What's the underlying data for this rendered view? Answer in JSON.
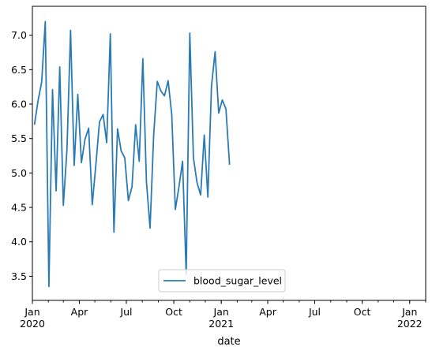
{
  "chart_data": {
    "type": "line",
    "title": "",
    "xlabel": "date",
    "ylabel": "",
    "xlim": [
      "2020-01",
      "2022-02"
    ],
    "ylim": [
      3.15,
      7.42
    ],
    "grid": false,
    "legend": "bottom-center",
    "x_ticks": [
      {
        "date": "2020-01",
        "label": "Jan",
        "year": "2020"
      },
      {
        "date": "2020-04",
        "label": "Apr",
        "year": ""
      },
      {
        "date": "2020-07",
        "label": "Jul",
        "year": ""
      },
      {
        "date": "2020-10",
        "label": "Oct",
        "year": ""
      },
      {
        "date": "2021-01",
        "label": "Jan",
        "year": "2021"
      },
      {
        "date": "2021-04",
        "label": "Apr",
        "year": ""
      },
      {
        "date": "2021-07",
        "label": "Jul",
        "year": ""
      },
      {
        "date": "2021-10",
        "label": "Oct",
        "year": ""
      },
      {
        "date": "2022-01",
        "label": "Jan",
        "year": "2022"
      }
    ],
    "y_ticks": [
      3.5,
      4.0,
      4.5,
      5.0,
      5.5,
      6.0,
      6.5,
      7.0
    ],
    "y_tick_labels": [
      "3.5",
      "4.0",
      "4.5",
      "5.0",
      "5.5",
      "6.0",
      "6.5",
      "7.0"
    ],
    "series": [
      {
        "name": "blood_sugar_level",
        "color": "#2a7bb5",
        "points": [
          [
            "2020-01-05",
            5.7
          ],
          [
            "2020-01-12",
            6.05
          ],
          [
            "2020-01-19",
            6.32
          ],
          [
            "2020-01-26",
            7.2
          ],
          [
            "2020-02-02",
            3.35
          ],
          [
            "2020-02-09",
            6.21
          ],
          [
            "2020-02-16",
            4.74
          ],
          [
            "2020-02-23",
            6.54
          ],
          [
            "2020-03-01",
            4.53
          ],
          [
            "2020-03-08",
            5.34
          ],
          [
            "2020-03-15",
            7.07
          ],
          [
            "2020-03-22",
            5.11
          ],
          [
            "2020-03-29",
            6.14
          ],
          [
            "2020-04-05",
            5.15
          ],
          [
            "2020-04-12",
            5.49
          ],
          [
            "2020-04-19",
            5.65
          ],
          [
            "2020-04-26",
            4.54
          ],
          [
            "2020-05-03",
            5.12
          ],
          [
            "2020-05-10",
            5.74
          ],
          [
            "2020-05-17",
            5.85
          ],
          [
            "2020-05-24",
            5.44
          ],
          [
            "2020-05-31",
            7.02
          ],
          [
            "2020-06-07",
            4.14
          ],
          [
            "2020-06-14",
            5.64
          ],
          [
            "2020-06-21",
            5.32
          ],
          [
            "2020-06-28",
            5.22
          ],
          [
            "2020-07-05",
            4.6
          ],
          [
            "2020-07-12",
            4.8
          ],
          [
            "2020-07-19",
            5.7
          ],
          [
            "2020-07-26",
            5.17
          ],
          [
            "2020-08-02",
            6.66
          ],
          [
            "2020-08-09",
            4.87
          ],
          [
            "2020-08-16",
            4.2
          ],
          [
            "2020-08-23",
            5.55
          ],
          [
            "2020-08-30",
            6.33
          ],
          [
            "2020-09-06",
            6.19
          ],
          [
            "2020-09-13",
            6.12
          ],
          [
            "2020-09-20",
            6.34
          ],
          [
            "2020-09-27",
            5.85
          ],
          [
            "2020-10-04",
            4.47
          ],
          [
            "2020-10-11",
            4.8
          ],
          [
            "2020-10-18",
            5.17
          ],
          [
            "2020-10-25",
            3.53
          ],
          [
            "2020-11-01",
            7.03
          ],
          [
            "2020-11-08",
            5.22
          ],
          [
            "2020-11-15",
            4.86
          ],
          [
            "2020-11-22",
            4.68
          ],
          [
            "2020-11-29",
            5.55
          ],
          [
            "2020-12-06",
            4.65
          ],
          [
            "2020-12-13",
            6.26
          ],
          [
            "2020-12-20",
            6.76
          ],
          [
            "2020-12-27",
            5.87
          ],
          [
            "2021-01-03",
            6.06
          ],
          [
            "2021-01-10",
            5.93
          ],
          [
            "2021-01-17",
            5.12
          ]
        ]
      }
    ]
  }
}
